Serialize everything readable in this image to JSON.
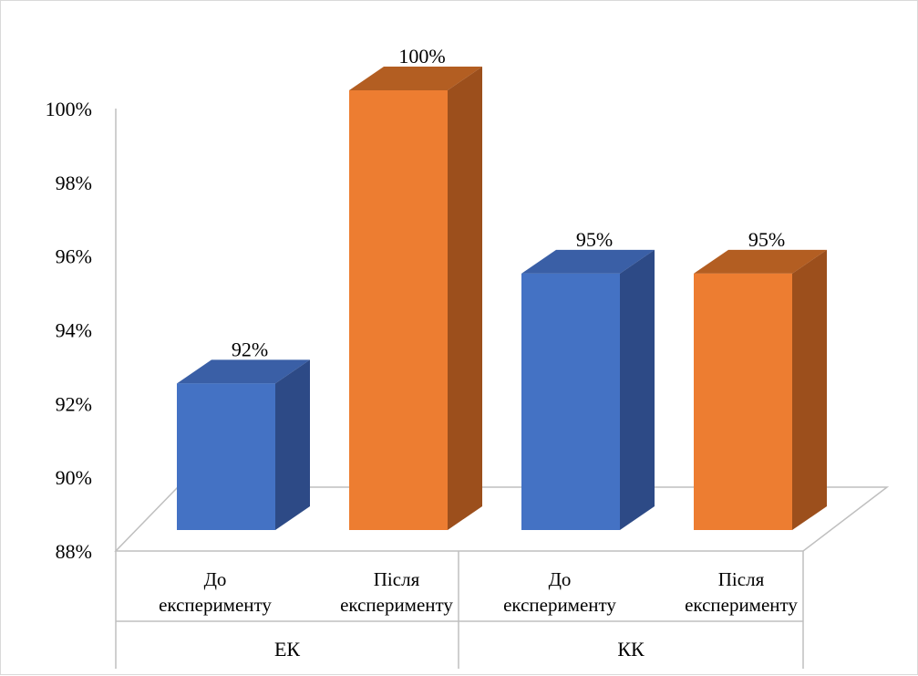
{
  "chart_data": {
    "type": "bar",
    "style": "3d-column",
    "title": "",
    "xlabel": "",
    "ylabel": "",
    "ylim": [
      88,
      100
    ],
    "y_tick_values": [
      88,
      90,
      92,
      94,
      96,
      98,
      100
    ],
    "y_tick_labels": [
      "88%",
      "90%",
      "92%",
      "94%",
      "96%",
      "98%",
      "100%"
    ],
    "grid": false,
    "legend": "none",
    "groups": [
      {
        "label": "ЕК",
        "bars": [
          {
            "category_lines": [
              "До",
              "експерименту"
            ],
            "value": 92,
            "value_label": "92%",
            "color": "#4472c4"
          },
          {
            "category_lines": [
              "Після",
              "експерименту"
            ],
            "value": 100,
            "value_label": "100%",
            "color": "#ed7d31"
          }
        ]
      },
      {
        "label": "КК",
        "bars": [
          {
            "category_lines": [
              "До",
              "експерименту"
            ],
            "value": 95,
            "value_label": "95%",
            "color": "#4472c4"
          },
          {
            "category_lines": [
              "Після",
              "експерименту"
            ],
            "value": 95,
            "value_label": "95%",
            "color": "#ed7d31"
          }
        ]
      }
    ],
    "colors": {
      "before_front": "#4472c4",
      "before_top": "#3a5fa6",
      "before_side": "#2d4a86",
      "after_front": "#ed7d31",
      "after_top": "#b35e22",
      "after_side": "#9c4f1c",
      "axis": "#bfbfbf"
    }
  }
}
